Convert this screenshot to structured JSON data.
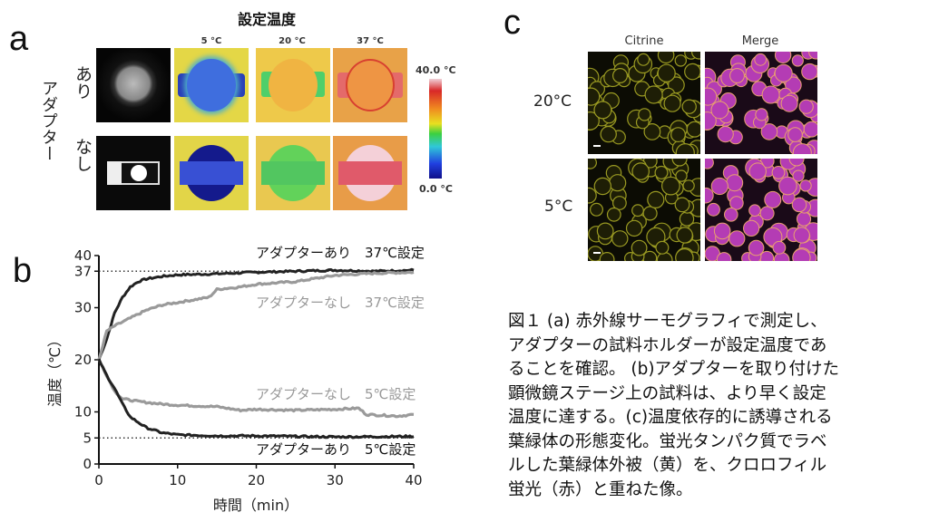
{
  "panel_a": {
    "label": "a",
    "title": "設定温度",
    "columns": [
      "5 °C",
      "20 °C",
      "37 °C"
    ],
    "row_group_label": "アダプター",
    "rows": [
      "あり",
      "なし"
    ],
    "colorbar": {
      "max": "40.0 °C",
      "min": "0.0 °C"
    }
  },
  "panel_b": {
    "label": "b"
  },
  "chart_data": {
    "type": "line",
    "xlabel": "時間（min）",
    "ylabel": "温度（℃）",
    "xlim": [
      0,
      40
    ],
    "ylim": [
      0,
      40
    ],
    "xticks": [
      "0",
      "10",
      "20",
      "30",
      "40"
    ],
    "yticks": [
      "0",
      "5",
      "10",
      "20",
      "30",
      "37",
      "40"
    ],
    "reference_lines": [
      37,
      5
    ],
    "series": [
      {
        "name": "アダプターあり　37℃設定",
        "color": "#222222",
        "x": [
          0,
          1,
          2,
          3,
          4,
          5,
          6,
          8,
          10,
          15,
          20,
          25,
          30,
          35,
          40
        ],
        "y": [
          20,
          24,
          29,
          32,
          34,
          35,
          35.5,
          36,
          36.3,
          36.5,
          36.8,
          37,
          37.2,
          37,
          37.2
        ]
      },
      {
        "name": "アダプターなし　37℃設定",
        "color": "#9a9a9a",
        "x": [
          0,
          1,
          2,
          4,
          6,
          8,
          10,
          12,
          14,
          15,
          18,
          20,
          25,
          30,
          35,
          40
        ],
        "y": [
          20,
          25.5,
          26.5,
          28,
          29.5,
          30.5,
          31,
          31.5,
          32,
          33.5,
          34,
          34.5,
          35,
          36.2,
          36.6,
          36.8
        ]
      },
      {
        "name": "アダプターなし　5℃設定",
        "color": "#9a9a9a",
        "x": [
          0,
          1,
          2,
          3,
          5,
          8,
          10,
          15,
          18,
          20,
          25,
          30,
          33,
          34,
          38,
          40
        ],
        "y": [
          20,
          17,
          14,
          12.5,
          12,
          11.5,
          11.3,
          11,
          10.3,
          10.5,
          10.3,
          10.5,
          10.7,
          9.5,
          9.2,
          9.5
        ]
      },
      {
        "name": "アダプターあり　5℃設定",
        "color": "#222222",
        "x": [
          0,
          1,
          2,
          3,
          4,
          5,
          6,
          8,
          10,
          15,
          20,
          30,
          40
        ],
        "y": [
          20,
          17,
          14.5,
          11.5,
          9,
          8,
          7,
          6,
          5.6,
          5.4,
          5.4,
          5.2,
          5.3
        ]
      }
    ]
  },
  "panel_c": {
    "label": "c",
    "columns": [
      "Citrine",
      "Merge"
    ],
    "rows": [
      "20°C",
      "5°C"
    ]
  },
  "caption": {
    "lines": [
      "図１ (a) 赤外線サーモグラフィで測定し、",
      "アダプターの試料ホルダーが設定温度であ",
      "ることを確認。 (b)アダプターを取り付けた",
      "顕微鏡ステージ上の試料は、より早く設定",
      "温度に達する。(c)温度依存的に誘導される",
      "葉緑体の形態変化。蛍光タンパク質でラベ",
      "ルした葉緑体外被（黄）を、クロロフィル",
      "蛍光（赤）と重ねた像。"
    ]
  }
}
